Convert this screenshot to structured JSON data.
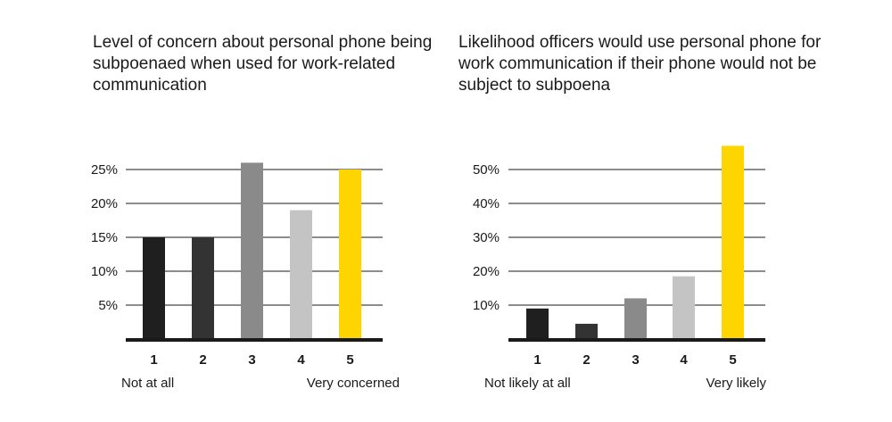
{
  "chart_data": [
    {
      "type": "bar",
      "title": "Level of concern about personal phone being subpoenaed when used for work-related communication",
      "categories": [
        "1",
        "2",
        "3",
        "4",
        "5"
      ],
      "values": [
        15,
        15,
        26,
        19,
        25
      ],
      "ylim": [
        0,
        27
      ],
      "yticks": [
        5,
        10,
        15,
        20,
        25
      ],
      "ytick_labels": [
        "5%",
        "10%",
        "15%",
        "20%",
        "25%"
      ],
      "grid": true,
      "colors": [
        "#1f1f1f",
        "#333333",
        "#8a8a8a",
        "#c4c4c4",
        "#ffd500"
      ],
      "low_label": "Not at all",
      "high_label": "Very concerned"
    },
    {
      "type": "bar",
      "title": "Likelihood officers would use personal phone for work communication if their phone would not be subject to subpoena",
      "categories": [
        "1",
        "2",
        "3",
        "4",
        "5"
      ],
      "values": [
        9,
        4.5,
        12,
        18.5,
        57
      ],
      "ylim": [
        0,
        57
      ],
      "yticks": [
        10,
        20,
        30,
        40,
        50
      ],
      "ytick_labels": [
        "10%",
        "20%",
        "30%",
        "40%",
        "50%"
      ],
      "grid": true,
      "colors": [
        "#1f1f1f",
        "#333333",
        "#8a8a8a",
        "#c4c4c4",
        "#ffd500"
      ],
      "low_label": "Not likely at all",
      "high_label": "Very likely"
    }
  ]
}
